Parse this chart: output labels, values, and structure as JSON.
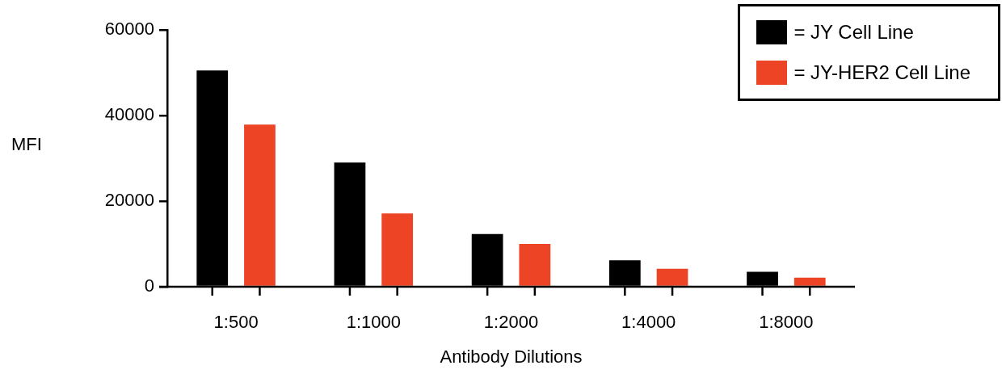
{
  "chart_data": {
    "type": "bar",
    "xlabel": "Antibody Dilutions",
    "ylabel": "MFI",
    "categories": [
      "1:500",
      "1:1000",
      "1:2000",
      "1:4000",
      "1:8000"
    ],
    "series": [
      {
        "name": "= JY Cell Line",
        "color": "#000000",
        "values": [
          50500,
          29000,
          12300,
          6200,
          3500
        ]
      },
      {
        "name": "= JY-HER2 Cell Line",
        "color": "#ee4426",
        "values": [
          37900,
          17100,
          10000,
          4200,
          2100
        ]
      }
    ],
    "ylim": [
      0,
      60000
    ],
    "yticks": [
      0,
      20000,
      40000,
      60000
    ],
    "grid": false,
    "legend": "top right"
  }
}
